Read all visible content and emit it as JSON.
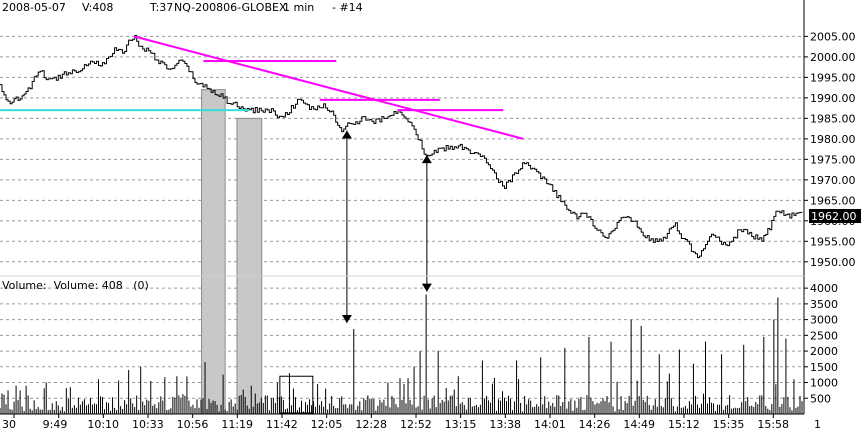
{
  "header": {
    "date": "2008-05-07",
    "volume": "V:408",
    "tick": "T:37",
    "symbol": "NQ-200806-GLOBEX",
    "interval": "1 min",
    "chart_id": "- #14"
  },
  "volume_label": "Volume:  Volume: 408   (0)",
  "last_price_label": "1962.00",
  "x_axis_end_label": "1",
  "colors": {
    "price_line": "#000000",
    "trendline": "#ff00ff",
    "support_line": "#33dddd",
    "highlight_fill": "#c8c8c8",
    "last_price_badge": "#000000"
  },
  "chart_data": [
    {
      "type": "line",
      "name": "price",
      "x_labels": [
        "30",
        "9:49",
        "10:10",
        "10:33",
        "10:56",
        "11:19",
        "11:42",
        "12:05",
        "12:28",
        "12:52",
        "13:15",
        "13:38",
        "14:01",
        "14:26",
        "14:49",
        "15:12",
        "15:35",
        "15:58"
      ],
      "y_ticks": [
        1950,
        1955,
        1960,
        1965,
        1970,
        1975,
        1980,
        1985,
        1990,
        1995,
        2000,
        2005
      ],
      "ylim": [
        1948,
        2009
      ],
      "bar_count": 400,
      "anchors": [
        [
          0,
          1993
        ],
        [
          8,
          1988
        ],
        [
          15,
          1990
        ],
        [
          25,
          1992
        ],
        [
          33,
          1997
        ],
        [
          42,
          1994
        ],
        [
          55,
          1996
        ],
        [
          67,
          1997
        ],
        [
          78,
          1999
        ],
        [
          88,
          1998
        ],
        [
          98,
          2002
        ],
        [
          104,
          2001
        ],
        [
          110,
          2004
        ],
        [
          114,
          2005
        ],
        [
          118,
          2003
        ],
        [
          128,
          2001
        ],
        [
          138,
          1998
        ],
        [
          146,
          1997
        ],
        [
          154,
          1999
        ],
        [
          160,
          1997
        ],
        [
          166,
          1994
        ],
        [
          172,
          1993
        ],
        [
          178,
          1992
        ],
        [
          186,
          1991
        ],
        [
          194,
          1989
        ],
        [
          202,
          1988
        ],
        [
          210,
          1987
        ],
        [
          220,
          1987
        ],
        [
          230,
          1987
        ],
        [
          238,
          1985
        ],
        [
          246,
          1987
        ],
        [
          252,
          1989
        ],
        [
          258,
          1989
        ],
        [
          266,
          1987
        ],
        [
          274,
          1988
        ],
        [
          282,
          1987
        ],
        [
          288,
          1982
        ],
        [
          294,
          1983
        ],
        [
          302,
          1984
        ],
        [
          310,
          1985
        ],
        [
          318,
          1984
        ],
        [
          326,
          1985
        ],
        [
          334,
          1986
        ],
        [
          340,
          1987
        ],
        [
          346,
          1985
        ],
        [
          352,
          1983
        ],
        [
          356,
          1980
        ],
        [
          360,
          1977
        ],
        [
          364,
          1976
        ],
        [
          372,
          1977
        ],
        [
          382,
          1978
        ],
        [
          392,
          1978
        ],
        [
          400,
          1977
        ],
        [
          406,
          1976
        ],
        [
          412,
          1975
        ],
        [
          418,
          1973
        ],
        [
          424,
          1970
        ],
        [
          428,
          1968
        ],
        [
          434,
          1970
        ],
        [
          440,
          1972
        ],
        [
          446,
          1974
        ],
        [
          452,
          1973
        ],
        [
          458,
          1971
        ],
        [
          466,
          1969
        ],
        [
          474,
          1966
        ],
        [
          482,
          1963
        ],
        [
          490,
          1961
        ],
        [
          496,
          1962
        ],
        [
          502,
          1960
        ],
        [
          508,
          1958
        ],
        [
          514,
          1956
        ],
        [
          520,
          1957
        ],
        [
          526,
          1960
        ],
        [
          532,
          1961
        ],
        [
          538,
          1960
        ],
        [
          544,
          1958
        ],
        [
          550,
          1956
        ],
        [
          556,
          1955
        ],
        [
          562,
          1955
        ],
        [
          568,
          1957
        ],
        [
          574,
          1959
        ],
        [
          580,
          1956
        ],
        [
          586,
          1954
        ],
        [
          590,
          1952
        ],
        [
          594,
          1951
        ],
        [
          600,
          1954
        ],
        [
          606,
          1957
        ],
        [
          612,
          1955
        ],
        [
          618,
          1954
        ],
        [
          624,
          1956
        ],
        [
          630,
          1958
        ],
        [
          636,
          1957
        ],
        [
          642,
          1956
        ],
        [
          648,
          1955
        ],
        [
          654,
          1958
        ],
        [
          660,
          1962
        ],
        [
          666,
          1962
        ],
        [
          672,
          1961
        ],
        [
          678,
          1962
        ],
        [
          682,
          1962
        ]
      ]
    },
    {
      "type": "bar",
      "name": "volume",
      "y_ticks": [
        500,
        1000,
        1500,
        2000,
        2500,
        3000,
        3500,
        4000
      ],
      "ylim": [
        0,
        4100
      ],
      "last_value": 408,
      "spikes": [
        [
          6,
          750
        ],
        [
          22,
          900
        ],
        [
          40,
          1000
        ],
        [
          60,
          850
        ],
        [
          84,
          1100
        ],
        [
          110,
          1400
        ],
        [
          120,
          1500
        ],
        [
          128,
          1050
        ],
        [
          150,
          1200
        ],
        [
          175,
          1650
        ],
        [
          190,
          1250
        ],
        [
          214,
          900
        ],
        [
          246,
          1300
        ],
        [
          270,
          950
        ],
        [
          300,
          2700
        ],
        [
          330,
          1000
        ],
        [
          352,
          1500
        ],
        [
          358,
          2000
        ],
        [
          363,
          3800
        ],
        [
          372,
          2000
        ],
        [
          390,
          1200
        ],
        [
          410,
          1700
        ],
        [
          440,
          1700
        ],
        [
          460,
          1800
        ],
        [
          480,
          2100
        ],
        [
          500,
          2450
        ],
        [
          520,
          2300
        ],
        [
          536,
          3000
        ],
        [
          546,
          2800
        ],
        [
          560,
          1900
        ],
        [
          578,
          2050
        ],
        [
          590,
          1600
        ],
        [
          600,
          2300
        ],
        [
          614,
          1900
        ],
        [
          632,
          2200
        ],
        [
          650,
          2450
        ],
        [
          658,
          3000
        ],
        [
          662,
          3700
        ],
        [
          668,
          2400
        ],
        [
          676,
          1100
        ]
      ]
    }
  ],
  "annotations": {
    "trendline": [
      [
        114,
        2005
      ],
      [
        445,
        1980
      ]
    ],
    "resistance_segments": [
      {
        "x": [
          173,
          286
        ],
        "y": 1999
      },
      {
        "x": [
          272,
          374
        ],
        "y": 1989.5
      },
      {
        "x": [
          338,
          428
        ],
        "y": 1987
      }
    ],
    "support_segment": {
      "x": [
        0,
        212
      ],
      "y": 1987
    },
    "price_arrows": [
      {
        "x": 295,
        "y": [
          1983,
          1956
        ]
      },
      {
        "x": 363,
        "y": [
          1977,
          1952
        ]
      }
    ],
    "volume_arrows": [
      {
        "x": 295,
        "y": [
          3900,
          2700
        ]
      },
      {
        "x": 363,
        "y": [
          3900,
          3700
        ]
      }
    ],
    "highlight_columns": [
      {
        "x": [
          171,
          191
        ],
        "top_price": 1992
      },
      {
        "x": [
          201,
          222
        ],
        "top_price": 1985
      }
    ],
    "volume_box": {
      "x": [
        238,
        266
      ],
      "y": [
        1200,
        0
      ]
    }
  }
}
